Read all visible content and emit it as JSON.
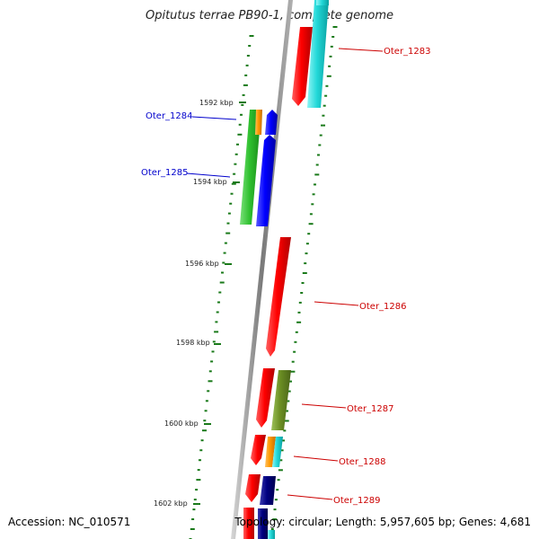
{
  "title": "Opitutus terrae PB90-1, complete genome",
  "footer": {
    "accession": "Accession: NC_010571",
    "summary": "Topology: circular; Length: 5,957,605 bp; Genes: 4,681"
  },
  "colors": {
    "backbone": "#8a8a8a",
    "tick": "#1a7a1a",
    "label_plus": "#cc0000",
    "label_minus": "#0000cc"
  },
  "scale_labels": [
    "1592 kbp",
    "1594 kbp",
    "1596 kbp",
    "1598 kbp",
    "1600 kbp",
    "1602 kbp"
  ],
  "genes": [
    {
      "name": "Oter_1283",
      "label_color": "#cc0000"
    },
    {
      "name": "Oter_1284",
      "label_color": "#0000cc"
    },
    {
      "name": "Oter_1285",
      "label_color": "#0000cc"
    },
    {
      "name": "Oter_1286",
      "label_color": "#cc0000"
    },
    {
      "name": "Oter_1287",
      "label_color": "#cc0000"
    },
    {
      "name": "Oter_1288",
      "label_color": "#cc0000"
    },
    {
      "name": "Oter_1289",
      "label_color": "#cc0000"
    }
  ]
}
